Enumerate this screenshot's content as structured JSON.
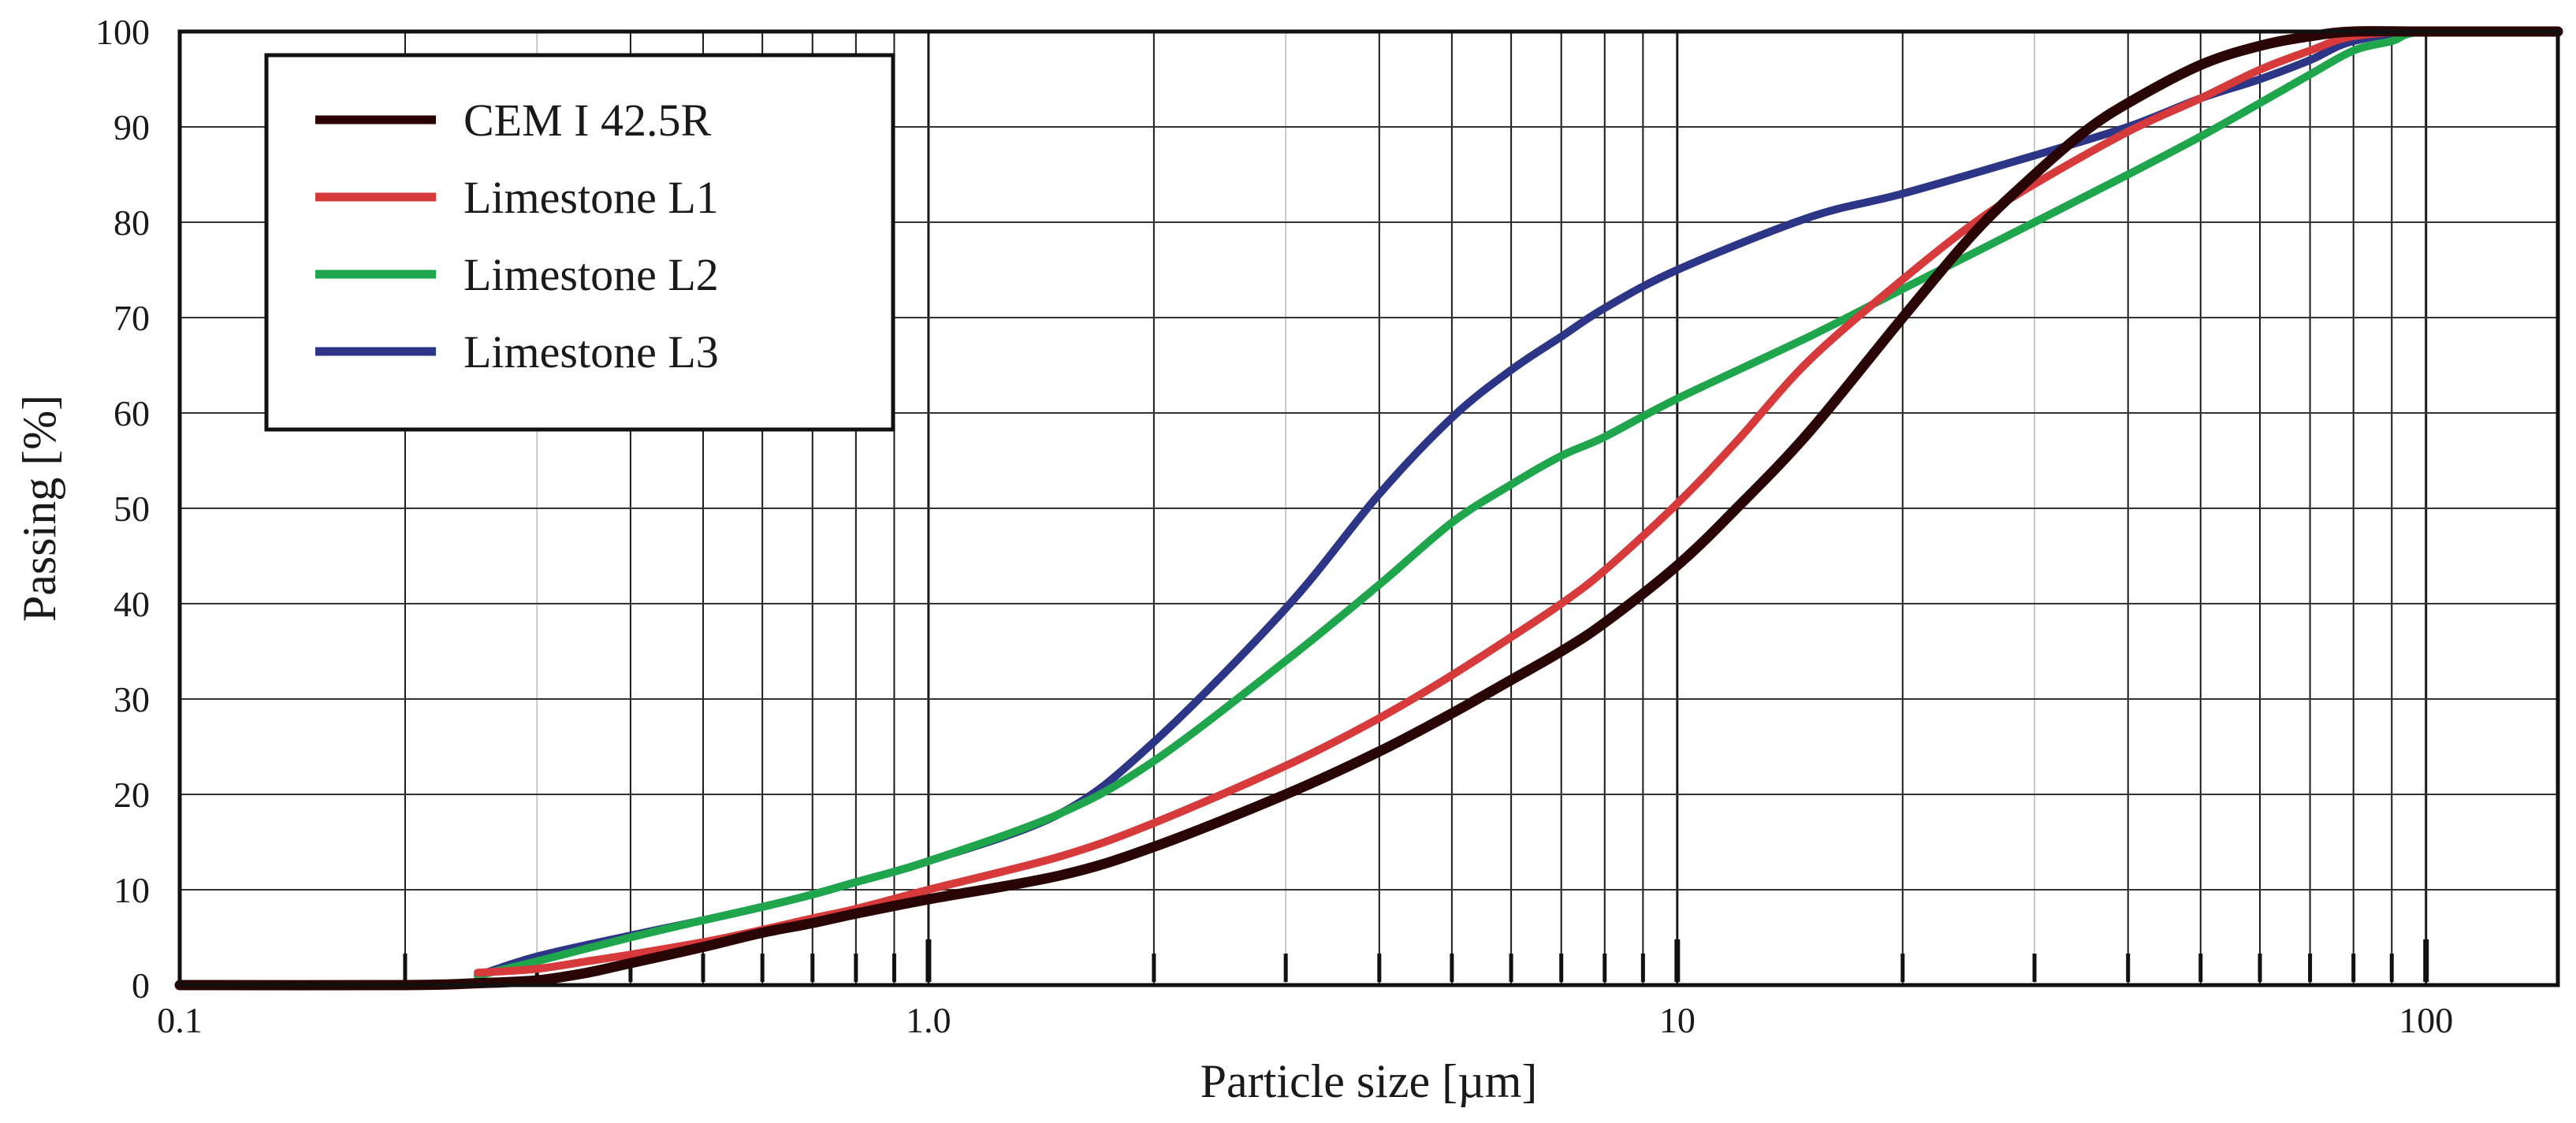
{
  "chart_data": {
    "type": "line",
    "title": "",
    "xlabel": "Particle size [µm]",
    "ylabel": "Passing [%]",
    "xscale": "log",
    "xlim": [
      0.1,
      150
    ],
    "ylim": [
      0,
      100
    ],
    "grid": true,
    "legend_position": "top-left",
    "x_tick_labels": [
      {
        "value": 0.1,
        "label": "0.1"
      },
      {
        "value": 1,
        "label": "1.0"
      },
      {
        "value": 10,
        "label": "10"
      },
      {
        "value": 100,
        "label": "100"
      }
    ],
    "y_tick_labels": [
      {
        "value": 0,
        "label": "0"
      },
      {
        "value": 10,
        "label": "10"
      },
      {
        "value": 20,
        "label": "20"
      },
      {
        "value": 30,
        "label": "30"
      },
      {
        "value": 40,
        "label": "40"
      },
      {
        "value": 50,
        "label": "50"
      },
      {
        "value": 60,
        "label": "60"
      },
      {
        "value": 70,
        "label": "70"
      },
      {
        "value": 80,
        "label": "80"
      },
      {
        "value": 90,
        "label": "90"
      },
      {
        "value": 100,
        "label": "100"
      }
    ],
    "series": [
      {
        "name": "CEM I 42.5R",
        "color": "#2a0505",
        "x": [
          0.1,
          0.2,
          0.25,
          0.3,
          0.35,
          0.4,
          0.5,
          0.6,
          0.7,
          0.8,
          1.0,
          1.5,
          2.0,
          3.0,
          4.0,
          5.0,
          6.0,
          7.0,
          8.0,
          10,
          12,
          15,
          20,
          25,
          30,
          35,
          40,
          50,
          60,
          70,
          80,
          100,
          150
        ],
        "values": [
          0,
          0,
          0.2,
          0.5,
          1.3,
          2.3,
          4,
          5.5,
          6.5,
          7.5,
          9,
          11.5,
          14.5,
          20,
          24.5,
          28.5,
          32,
          35,
          38,
          44,
          50,
          58,
          70,
          79,
          85,
          89.5,
          92.5,
          96.5,
          98.5,
          99.5,
          100,
          100,
          100
        ]
      },
      {
        "name": "Limestone L1",
        "color": "#d63a3a",
        "x": [
          0.25,
          0.3,
          0.35,
          0.4,
          0.5,
          0.6,
          0.7,
          0.8,
          1.0,
          1.5,
          2.0,
          3.0,
          4.0,
          5.0,
          6.0,
          7.0,
          8.0,
          10,
          12,
          15,
          20,
          25,
          30,
          40,
          50,
          60,
          70,
          80,
          100,
          150
        ],
        "values": [
          1.3,
          1.7,
          2.5,
          3.2,
          4.5,
          5.8,
          7,
          8,
          10,
          13.5,
          17,
          23,
          28,
          32.5,
          36.5,
          40,
          43.5,
          50.5,
          57,
          65.5,
          74,
          80,
          84,
          89.5,
          93,
          96,
          98,
          99.5,
          100,
          100
        ]
      },
      {
        "name": "Limestone L2",
        "color": "#1fa64c",
        "x": [
          0.25,
          0.3,
          0.4,
          0.5,
          0.6,
          0.7,
          0.8,
          1.0,
          1.5,
          2.0,
          3.0,
          4.0,
          5.0,
          6.0,
          7.0,
          8.0,
          10,
          15,
          20,
          30,
          40,
          50,
          60,
          70,
          80,
          90,
          100,
          150
        ],
        "values": [
          1,
          2.5,
          5,
          6.8,
          8.2,
          9.5,
          10.8,
          13,
          18,
          23.5,
          34,
          42,
          48.5,
          52.5,
          55.5,
          57.5,
          61.5,
          68,
          73,
          80,
          85,
          89,
          92.5,
          95.5,
          98,
          99,
          100,
          100
        ]
      },
      {
        "name": "Limestone L3",
        "color": "#2d3686",
        "x": [
          0.25,
          0.3,
          0.4,
          0.5,
          0.6,
          0.7,
          0.8,
          1.0,
          1.5,
          2.0,
          3.0,
          4.0,
          5.0,
          6.0,
          7.0,
          8.0,
          10,
          15,
          20,
          30,
          40,
          50,
          60,
          70,
          80,
          100,
          150
        ],
        "values": [
          1,
          3,
          5.2,
          6.8,
          8.2,
          9.5,
          10.8,
          13,
          18,
          25.5,
          39.5,
          51.5,
          59.5,
          64.5,
          68,
          71,
          75,
          80.5,
          83,
          87,
          90,
          93,
          95,
          97,
          99,
          100,
          100
        ]
      }
    ]
  }
}
